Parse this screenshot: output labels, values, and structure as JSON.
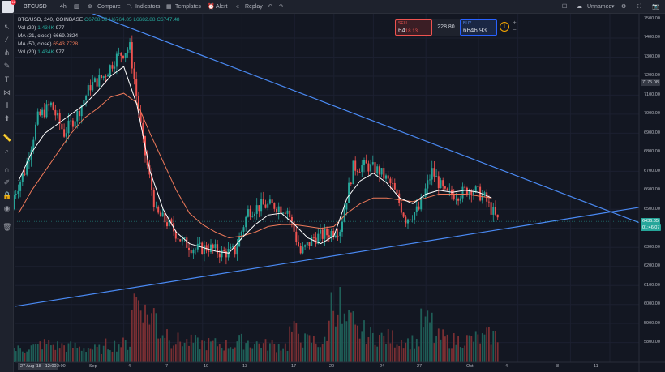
{
  "toolbar": {
    "symbol": "BTCUSD",
    "interval": "4h",
    "compare": "Compare",
    "indicators": "Indicators",
    "templates": "Templates",
    "alert": "Alert",
    "replay": "Replay",
    "layout_name": "Unnamed",
    "logo_badge": "11"
  },
  "legend": {
    "title": "BTC/USD, 240, COINBASE",
    "ohlc": {
      "o_label": "O",
      "o": "6708.59",
      "h_label": "H",
      "h": "6764.85",
      "l_label": "L",
      "l": "6682.88",
      "c_label": "C",
      "c": "6747.48"
    },
    "lines": [
      {
        "name": "Vol (20)",
        "v1": "1.434K",
        "v2": "977"
      },
      {
        "name": "MA (21, close)",
        "v1": "6669.2824"
      },
      {
        "name": "MA (50, close)",
        "v1": "6543.7728"
      },
      {
        "name": "Vol (20)",
        "v1": "1.434K",
        "v2": "977"
      }
    ]
  },
  "trade": {
    "sell_label": "SELL",
    "sell_price_main": "64",
    "sell_price_small": "18.13",
    "spread": "228.80",
    "buy_label": "BUY",
    "buy_price": "6646.93"
  },
  "price_axis": {
    "ticks": [
      "7500.00",
      "7400.00",
      "7300.00",
      "7200.00",
      "7100.00",
      "7000.00",
      "6900.00",
      "6800.00",
      "6700.00",
      "6600.00",
      "6500.00",
      "6400.00",
      "6300.00",
      "6200.00",
      "6100.00",
      "6000.00",
      "5900.00",
      "5800.00"
    ],
    "crosshair_label": "7175.08",
    "last_price": "6436.85",
    "countdown": "01:46:07"
  },
  "time_axis": {
    "ticks": [
      "Sep",
      "4",
      "7",
      "10",
      "13",
      "17",
      "20",
      "24",
      "27",
      "Oct",
      "4",
      "8",
      "11"
    ],
    "hover_date": "27 Aug '18 - 12:00",
    "partial_tick": "2:00"
  },
  "colors": {
    "up": "#26a69a",
    "down": "#ef5350",
    "ma21": "#ffffff",
    "ma50": "#f07a5a",
    "trendline": "#4a8af4",
    "background": "#131722"
  },
  "chart_data": {
    "type": "candlestick",
    "symbol": "BTC/USD",
    "exchange": "COINBASE",
    "interval": "240",
    "ylim": [
      5750,
      7550
    ],
    "x": [
      "Aug 27",
      "Aug 28",
      "Aug 29",
      "Aug 30",
      "Aug 31",
      "Sep 1",
      "Sep 2",
      "Sep 3",
      "Sep 4",
      "Sep 5",
      "Sep 6",
      "Sep 7",
      "Sep 8",
      "Sep 9",
      "Sep 10",
      "Sep 11",
      "Sep 12",
      "Sep 13",
      "Sep 14",
      "Sep 15",
      "Sep 16",
      "Sep 17",
      "Sep 18",
      "Sep 19",
      "Sep 20",
      "Sep 21",
      "Sep 22",
      "Sep 23",
      "Sep 24",
      "Sep 25",
      "Sep 26",
      "Sep 27",
      "Sep 28",
      "Sep 29",
      "Sep 30",
      "Oct 1",
      "Oct 2"
    ],
    "close": [
      6700,
      6980,
      7050,
      6900,
      7000,
      7150,
      7200,
      7300,
      7350,
      6850,
      6480,
      6420,
      6330,
      6290,
      6300,
      6270,
      6280,
      6490,
      6520,
      6520,
      6500,
      6270,
      6350,
      6370,
      6400,
      6720,
      6730,
      6700,
      6620,
      6450,
      6500,
      6700,
      6580,
      6580,
      6610,
      6560,
      6440
    ],
    "ma21": [
      6650,
      6800,
      6900,
      6950,
      7000,
      7050,
      7120,
      7200,
      7250,
      7050,
      6700,
      6500,
      6380,
      6320,
      6300,
      6280,
      6270,
      6350,
      6420,
      6470,
      6480,
      6420,
      6350,
      6320,
      6360,
      6560,
      6650,
      6690,
      6640,
      6560,
      6530,
      6580,
      6600,
      6590,
      6600,
      6590,
      6560
    ],
    "ma50": [
      6480,
      6600,
      6700,
      6800,
      6900,
      6980,
      7030,
      7090,
      7110,
      7060,
      6900,
      6750,
      6600,
      6480,
      6420,
      6380,
      6350,
      6360,
      6380,
      6410,
      6420,
      6420,
      6410,
      6400,
      6410,
      6480,
      6530,
      6560,
      6560,
      6550,
      6540,
      6560,
      6580,
      6580,
      6580,
      6570,
      6560
    ],
    "volume": [
      300,
      350,
      420,
      380,
      360,
      330,
      300,
      400,
      420,
      1450,
      1100,
      700,
      500,
      460,
      430,
      420,
      400,
      480,
      430,
      400,
      380,
      700,
      500,
      450,
      1350,
      900,
      700,
      600,
      560,
      520,
      480,
      900,
      560,
      500,
      520,
      540,
      600
    ],
    "trendlines": [
      {
        "name": "upper",
        "from": [
          "Aug 27",
          7560
        ],
        "to": [
          "Oct 13",
          6430
        ]
      },
      {
        "name": "lower",
        "from": [
          "Aug 24",
          5990
        ],
        "to": [
          "Oct 13",
          6510
        ]
      }
    ],
    "grid": true
  }
}
